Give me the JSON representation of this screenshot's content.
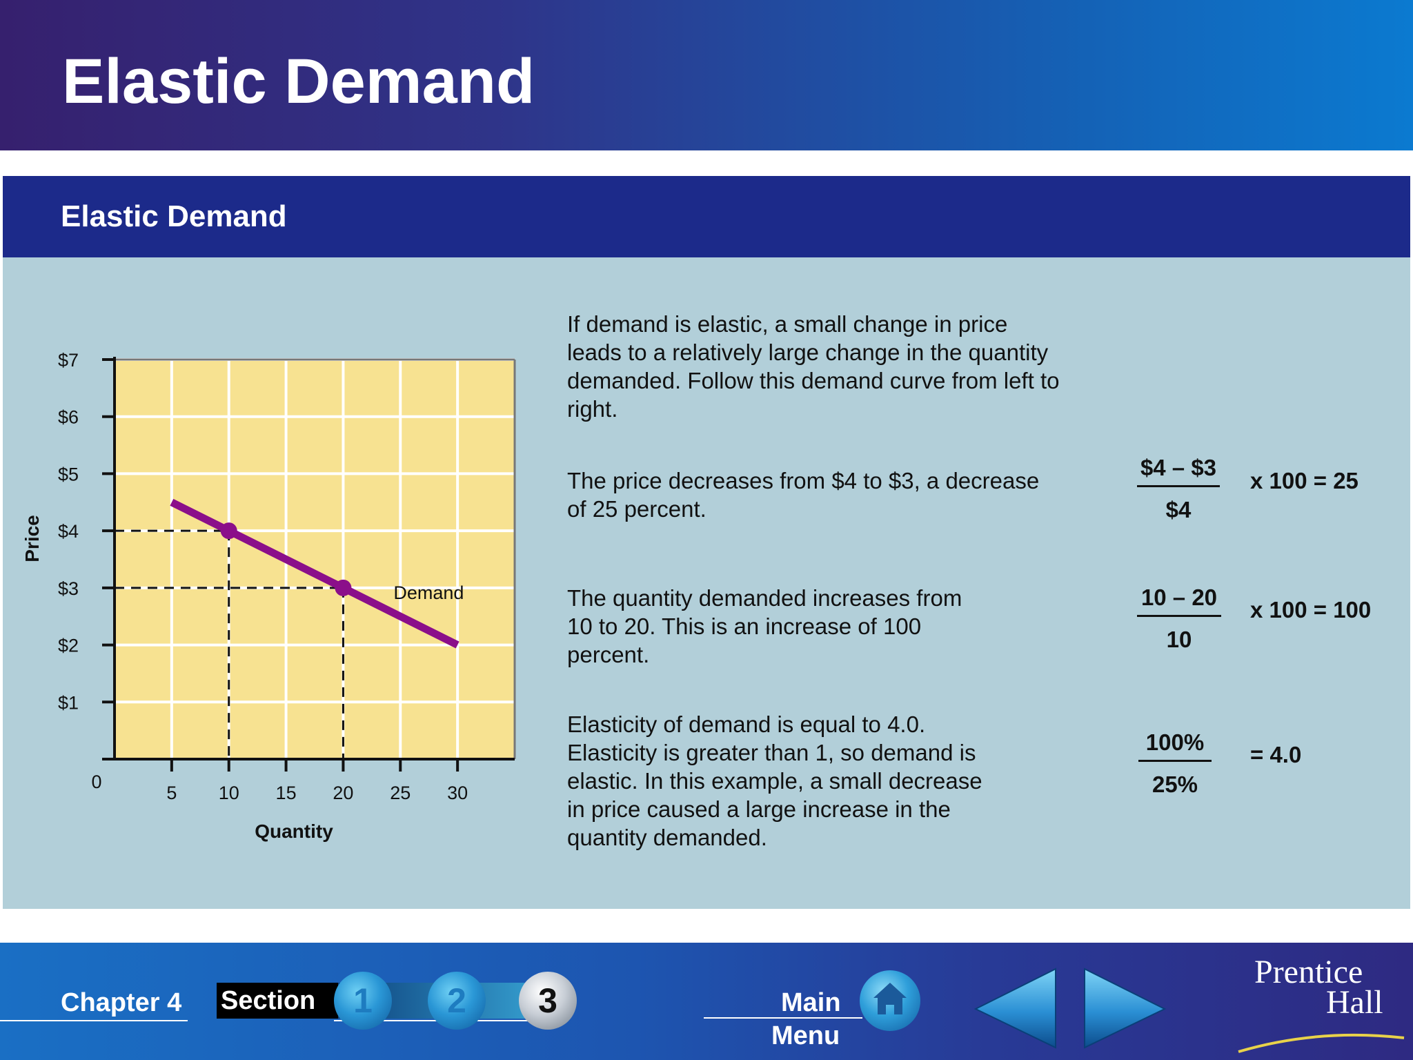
{
  "header": {
    "title": "Elastic Demand"
  },
  "panel": {
    "title": "Elastic Demand"
  },
  "chart_data": {
    "type": "line",
    "xlabel": "Quantity",
    "ylabel": "Price",
    "origin_label": "0",
    "xlim": [
      0,
      35
    ],
    "ylim": [
      0,
      7
    ],
    "x_ticks": [
      5,
      10,
      15,
      20,
      25,
      30
    ],
    "x_tick_labels": [
      "5",
      "10",
      "15",
      "20",
      "25",
      "30"
    ],
    "y_ticks": [
      1,
      2,
      3,
      4,
      5,
      6,
      7
    ],
    "y_tick_labels": [
      "$1",
      "$2",
      "$3",
      "$4",
      "$5",
      "$6",
      "$7"
    ],
    "grid": true,
    "series": [
      {
        "name": "Demand",
        "x": [
          5,
          30
        ],
        "y": [
          4.5,
          2
        ],
        "color": "#8b0f8a"
      }
    ],
    "points": [
      {
        "x": 10,
        "y": 4
      },
      {
        "x": 20,
        "y": 3
      }
    ],
    "reference_lines": [
      {
        "x": 10,
        "y": 4
      },
      {
        "x": 20,
        "y": 3
      }
    ],
    "colors": {
      "plot_bg": "#f7e291",
      "grid": "#ffffff",
      "curve": "#8b0f8a"
    }
  },
  "explanations": [
    {
      "text": "If demand is elastic, a small change in price\nleads to a relatively large change in the quantity\ndemanded. Follow this demand curve from left to\nright."
    },
    {
      "text": "The price decreases from $4 to $3, a decrease\nof 25 percent.",
      "numerator": "$4 – $3",
      "denominator": "$4",
      "result": "x 100 = 25"
    },
    {
      "text": "The quantity demanded increases from\n10 to 20. This is  an increase of 100\npercent.",
      "numerator": "10 – 20",
      "denominator": "10",
      "result": "x 100 = 100"
    },
    {
      "text": "Elasticity of demand is equal to 4.0.\nElasticity is greater than 1, so demand is\nelastic. In this example, a small decrease\nin price caused a large increase in the\nquantity demanded.",
      "numerator": "100%",
      "denominator": "25%",
      "result": "= 4.0"
    }
  ],
  "footer": {
    "chapter": "Chapter 4",
    "section": "Section",
    "section_buttons": [
      "1",
      "2",
      "3"
    ],
    "main_menu_line1": "Main",
    "main_menu_line2": "Menu",
    "brand_line1": "Prentice",
    "brand_line2": "Hall"
  }
}
